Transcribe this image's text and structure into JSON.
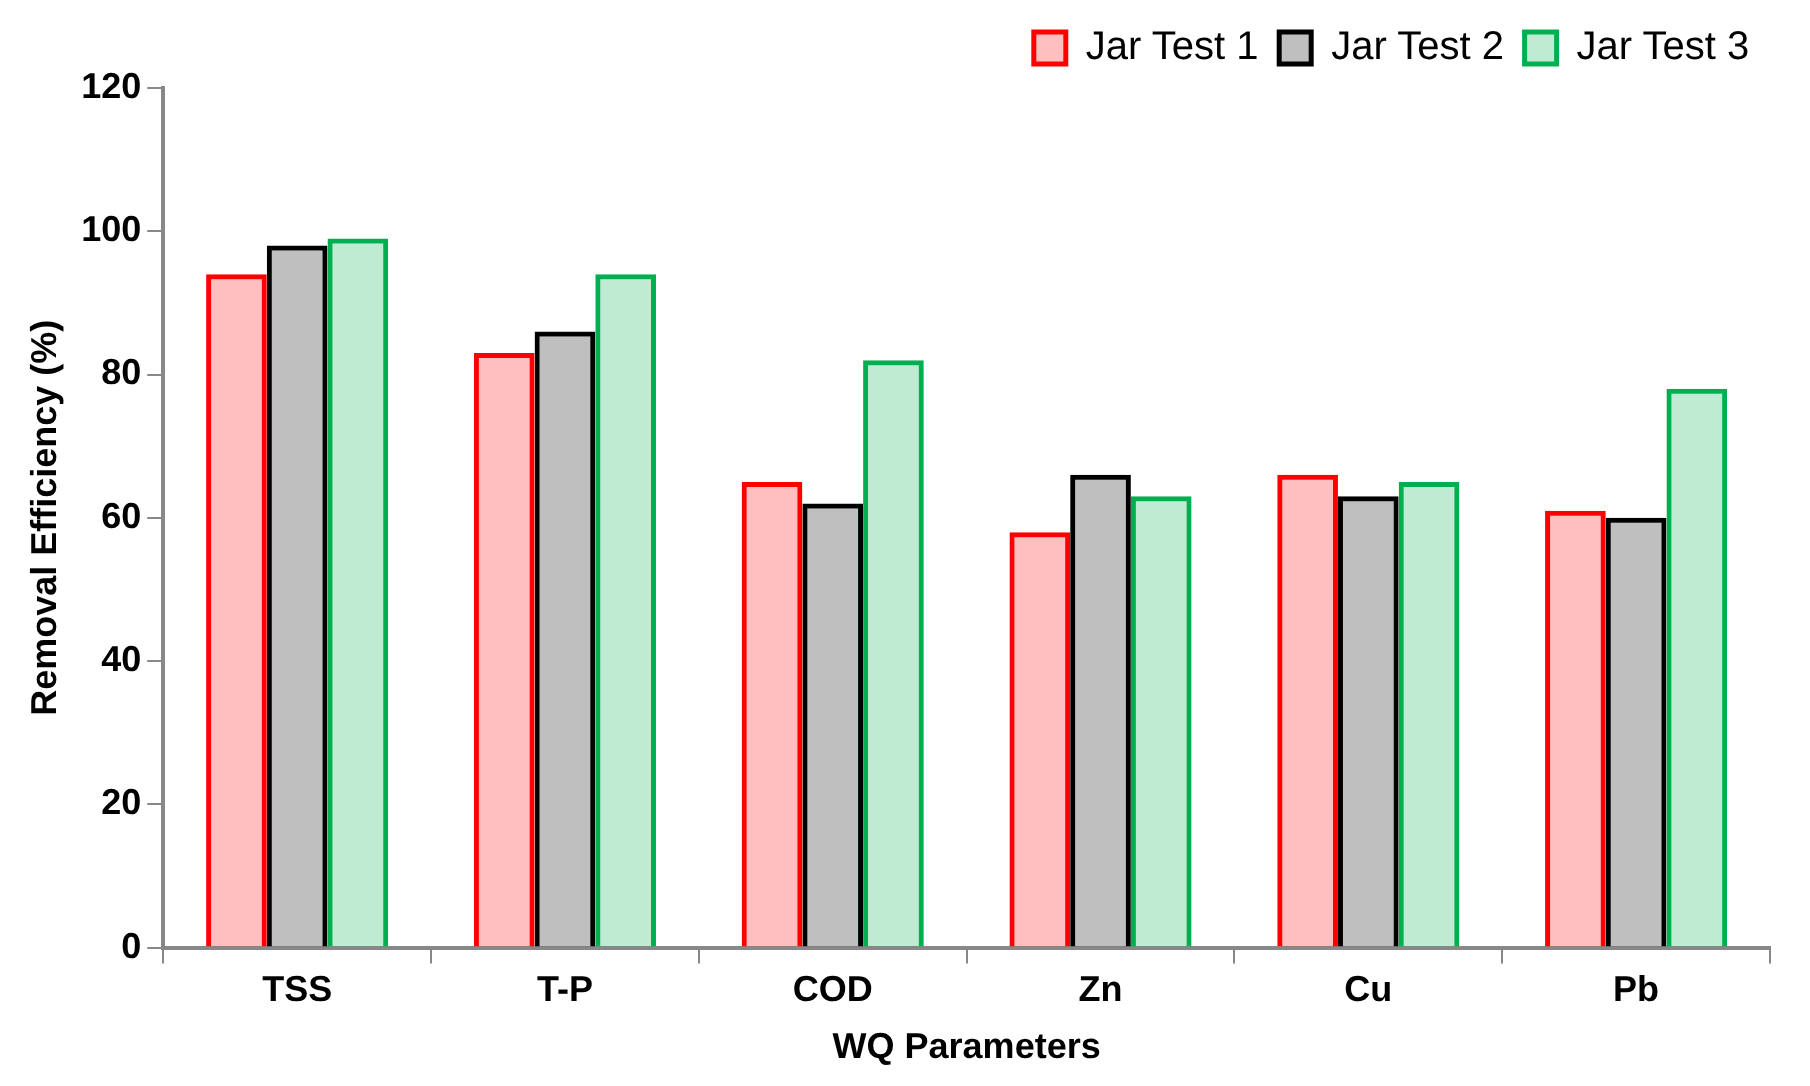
{
  "chart_data": {
    "type": "bar",
    "xlabel": "WQ Parameters",
    "ylabel": "Removal Efficiency (%)",
    "categories": [
      "TSS",
      "T-P",
      "COD",
      "Zn",
      "Cu",
      "Pb"
    ],
    "series": [
      {
        "name": "Jar Test 1",
        "color": "#ff0000",
        "values": [
          94,
          83,
          65,
          58,
          66,
          61
        ]
      },
      {
        "name": "Jar Test 2",
        "color": "#000000",
        "values": [
          98,
          86,
          62,
          66,
          63,
          60
        ]
      },
      {
        "name": "Jar Test 3",
        "color": "#00b050",
        "values": [
          99,
          94,
          82,
          63,
          65,
          78
        ]
      }
    ],
    "ylim": [
      0,
      120
    ],
    "yticks": [
      0,
      20,
      40,
      60,
      80,
      100,
      120
    ],
    "grid": false,
    "legend": "top right"
  }
}
